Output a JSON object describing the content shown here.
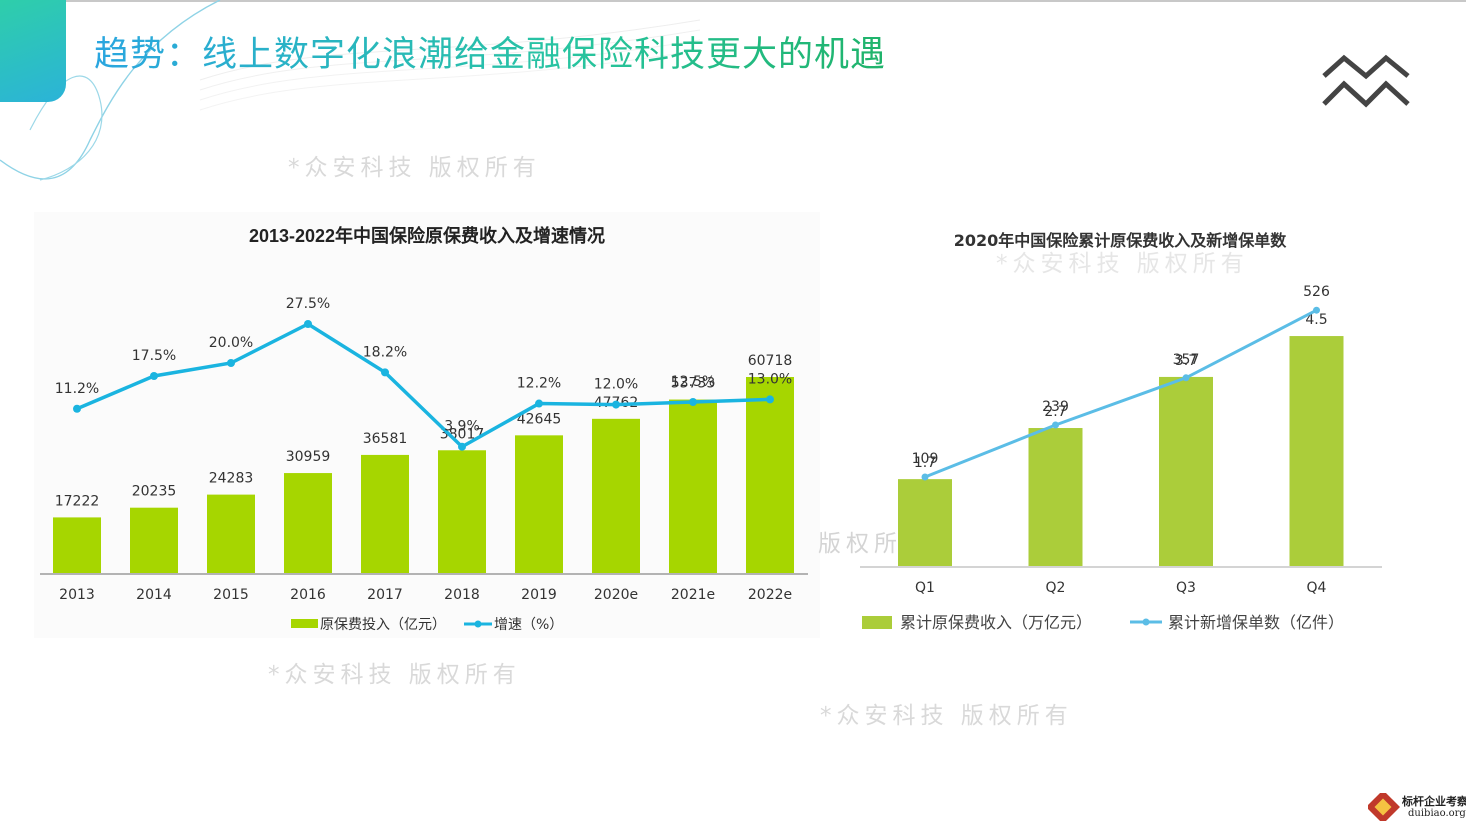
{
  "page": {
    "title": "趋势：线上数字化浪潮给金融保险科技更大的机遇",
    "watermark": "*众安科技 版权所有",
    "watermark_partial": "版权所",
    "footer_brand_line1": "标杆企业考察",
    "footer_brand_line2": "duibiao.org"
  },
  "colors": {
    "bar_left": "#a6d600",
    "line_left": "#1ab4e0",
    "bar_right": "#abcd3a",
    "line_right": "#5bbde6"
  },
  "chart_data": [
    {
      "type": "bar",
      "title": "2013-2022年中国保险原保费收入及增速情况",
      "categories": [
        "2013",
        "2014",
        "2015",
        "2016",
        "2017",
        "2018",
        "2019",
        "2020e",
        "2021e",
        "2022e"
      ],
      "series": [
        {
          "name": "原保费投入（亿元）",
          "type": "bar",
          "values": [
            17222,
            20235,
            24283,
            30959,
            36581,
            38017,
            42645,
            47762,
            53733,
            60718
          ]
        },
        {
          "name": "增速（%）",
          "type": "line",
          "values": [
            11.2,
            17.5,
            20.0,
            27.5,
            18.2,
            3.9,
            12.2,
            12.0,
            12.5,
            13.0
          ],
          "labels": [
            "11.2%",
            "17.5%",
            "20.0%",
            "27.5%",
            "18.2%",
            "3.9%",
            "12.2%",
            "12.0%",
            "12.5%",
            "13.0%"
          ]
        }
      ],
      "legend": "bottom"
    },
    {
      "type": "bar",
      "title": "2020年中国保险累计原保费收入及新增保单数",
      "categories": [
        "Q1",
        "Q2",
        "Q3",
        "Q4"
      ],
      "series": [
        {
          "name": "累计原保费收入（万亿元）",
          "type": "bar",
          "values": [
            1.7,
            2.7,
            3.7,
            4.5
          ]
        },
        {
          "name": "累计新增保单数（亿件）",
          "type": "line",
          "values": [
            109,
            239,
            357,
            526
          ]
        }
      ],
      "legend": "bottom"
    }
  ]
}
